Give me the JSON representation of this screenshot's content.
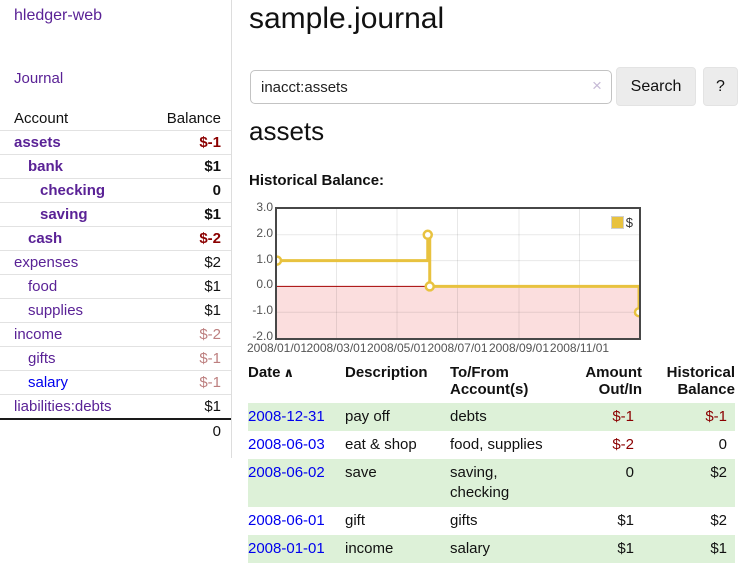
{
  "brand": "hledger-web",
  "nav": {
    "journal": "Journal"
  },
  "sidebar": {
    "col_account": "Account",
    "col_balance": "Balance",
    "accounts": [
      {
        "name": "assets",
        "depth": 0,
        "strong": true,
        "balance": "$-1"
      },
      {
        "name": "bank",
        "depth": 1,
        "strong": true,
        "balance": "$1"
      },
      {
        "name": "checking",
        "depth": 2,
        "strong": true,
        "balance": "0"
      },
      {
        "name": "saving",
        "depth": 2,
        "strong": true,
        "balance": "$1"
      },
      {
        "name": "cash",
        "depth": 1,
        "strong": true,
        "balance": "$-2"
      },
      {
        "name": "expenses",
        "depth": 0,
        "strong": false,
        "balance": "$2"
      },
      {
        "name": "food",
        "depth": 1,
        "strong": false,
        "balance": "$1"
      },
      {
        "name": "supplies",
        "depth": 1,
        "strong": false,
        "balance": "$1"
      },
      {
        "name": "income",
        "depth": 0,
        "strong": false,
        "balance": "$-2"
      },
      {
        "name": "gifts",
        "depth": 1,
        "strong": false,
        "balance": "$-1"
      },
      {
        "name": "salary",
        "depth": 1,
        "strong": false,
        "balance": "$-1",
        "unvisited": true
      },
      {
        "name": "liabilities:debts",
        "depth": 0,
        "strong": false,
        "balance": "$1"
      }
    ],
    "total": "0"
  },
  "header": {
    "title": "sample.journal"
  },
  "search": {
    "value": "inacct:assets",
    "clear_icon": "×",
    "button_label": "Search",
    "help_label": "?"
  },
  "account_page": {
    "heading": "assets",
    "chart_label": "Historical Balance:"
  },
  "chart_data": {
    "type": "line",
    "style": "step",
    "title": "Historical Balance",
    "series": [
      {
        "name": "$",
        "color": "#e8c23f",
        "points": [
          [
            "2008-01-01",
            1.0
          ],
          [
            "2008-06-01",
            2.0
          ],
          [
            "2008-06-03",
            0.0
          ],
          [
            "2008-12-31",
            -1.0
          ]
        ]
      }
    ],
    "x_range": [
      "2008-01-01",
      "2008-12-31"
    ],
    "ylim": [
      -2.0,
      3.0
    ],
    "ytick_labels": [
      "3.0",
      "2.0",
      "1.0",
      "0.0",
      "-1.0",
      "-2.0"
    ],
    "xticks": [
      {
        "date": "2008-01-01",
        "label": "2008/01/01"
      },
      {
        "date": "2008-03-01",
        "label": "2008/03/01"
      },
      {
        "date": "2008-05-01",
        "label": "2008/05/01"
      },
      {
        "date": "2008-07-01",
        "label": "2008/07/01"
      },
      {
        "date": "2008-09-01",
        "label": "2008/09/01"
      },
      {
        "date": "2008-11-01",
        "label": "2008/11/01"
      }
    ],
    "legend": {
      "label": "$",
      "position": "top-right"
    },
    "grid": true,
    "negative_region_color": "#fbdede",
    "zero_line_color": "#a40000"
  },
  "register": {
    "headers": [
      {
        "lines": [
          "Date"
        ],
        "sort_icon": "∧"
      },
      {
        "lines": [
          "Description"
        ]
      },
      {
        "lines": [
          "To/From",
          "Account(s)"
        ]
      },
      {
        "lines": [
          "Amount",
          "Out/In"
        ]
      },
      {
        "lines": [
          "Historical",
          "Balance"
        ]
      }
    ],
    "rows": [
      {
        "date": "2008-12-31",
        "description": "pay off",
        "accounts": "debts",
        "amount": "$-1",
        "balance": "$-1"
      },
      {
        "date": "2008-06-03",
        "description": "eat & shop",
        "accounts": "food, supplies",
        "amount": "$-2",
        "balance": "0"
      },
      {
        "date": "2008-06-02",
        "description": "save",
        "accounts": "saving, checking",
        "amount": "0",
        "balance": "$2"
      },
      {
        "date": "2008-06-01",
        "description": "gift",
        "accounts": "gifts",
        "amount": "$1",
        "balance": "$2"
      },
      {
        "date": "2008-01-01",
        "description": "income",
        "accounts": "salary",
        "amount": "$1",
        "balance": "$1"
      }
    ]
  }
}
